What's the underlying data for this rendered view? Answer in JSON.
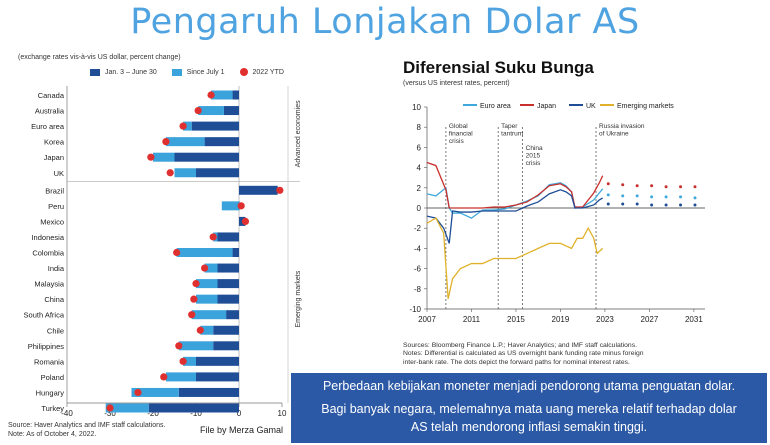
{
  "title": "Pengaruh Lonjakan Dolar AS",
  "left_chart": {
    "subtitle": "(exchange rates vis-à-vis US dollar, percent change)",
    "source": "Source: Haver Analytics and IMF staff calculations.",
    "note": "Note: As of October 4, 2022.",
    "credit": "File by Merza Gamal",
    "group_labels": [
      "Advanced economies",
      "Emerging markets"
    ],
    "colors": {
      "jan_june": "#1f4e96",
      "since_july": "#3ba3dc",
      "ytd": "#e02f2f"
    }
  },
  "right_chart": {
    "title": "Diferensial Suku Bunga",
    "subtitle": "(versus US interest rates, percent)",
    "annotations": [
      "Global financial crisis",
      "Taper tantrum",
      "China 2015 crisis",
      "Russia invasion of Ukraine"
    ],
    "source_lines": [
      "Sources: Bloomberg Finance L.P.; Haver Analytics; and IMF staff calculations.",
      "Notes: Differential is calculated as US overnight bank funding rate minus foreign",
      "inter-bank rate. The dots depict the forward paths for nominal interest rates."
    ],
    "colors": {
      "euro": "#3fa8dc",
      "japan": "#c9302c",
      "uk": "#1f4e96",
      "em": "#e0b22a"
    }
  },
  "banner": {
    "line1": "Perbedaan kebijakan moneter menjadi pendorong utama penguatan dolar.",
    "line2": "Bagi banyak negara, melemahnya mata uang mereka relatif terhadap dolar",
    "line3": "AS telah mendorong inflasi semakin tinggi."
  },
  "chart_data": [
    {
      "type": "bar",
      "orientation": "horizontal",
      "title": "",
      "xlim": [
        -40,
        10
      ],
      "xticks": [
        -40,
        -30,
        -20,
        -10,
        0,
        10
      ],
      "series_names": [
        "Jan. 3 – June 30",
        "Since July 1",
        "2022 YTD"
      ],
      "categories": [
        "Canada",
        "Australia",
        "Euro area",
        "Korea",
        "Japan",
        "UK",
        "Brazil",
        "Peru",
        "Mexico",
        "Indonesia",
        "Colombia",
        "India",
        "Malaysia",
        "China",
        "South Africa",
        "Chile",
        "Philippines",
        "Romania",
        "Poland",
        "Hungary",
        "Turkey"
      ],
      "jan_june": [
        -1.5,
        -3.5,
        -11,
        -8,
        -15,
        -10,
        9,
        0,
        1.5,
        -5,
        -1.5,
        -5,
        -5,
        -5,
        -3,
        -6,
        -6,
        -10,
        -10,
        -14,
        -21
      ],
      "since_july": [
        -5,
        -6,
        -2,
        -9,
        -5,
        -5,
        0,
        -4,
        0,
        -1,
        -13,
        -3,
        -5,
        -5,
        -8,
        -3,
        -8,
        -3,
        -7,
        -11,
        -10
      ],
      "ytd": [
        -6.5,
        -9.5,
        -13,
        -17,
        -20.5,
        -16,
        9.5,
        0.5,
        1.5,
        -6,
        -14.5,
        -8,
        -10,
        -10.5,
        -11,
        -9,
        -14,
        -13,
        -17.5,
        -23.5,
        -30
      ]
    },
    {
      "type": "line",
      "title": "Diferensial Suku Bunga",
      "xlim": [
        2007,
        2032
      ],
      "ylim": [
        -10,
        10
      ],
      "xticks": [
        2007,
        2011,
        2015,
        2019,
        2023,
        2027,
        2031
      ],
      "yticks": [
        10,
        8,
        6,
        4,
        2,
        0,
        -2,
        -4,
        -6,
        -8,
        -10
      ],
      "event_lines": [
        2008.7,
        2013.4,
        2015.6,
        2022.2
      ],
      "series": [
        {
          "name": "Euro area",
          "x": [
            2007,
            2007.8,
            2008.7,
            2009,
            2009.3,
            2010,
            2011,
            2012,
            2013,
            2014,
            2015,
            2016,
            2017,
            2018,
            2019,
            2019.5,
            2020,
            2020.3,
            2021,
            2022,
            2022.5,
            2022.8
          ],
          "y": [
            1.4,
            1.2,
            2.0,
            0.0,
            -0.5,
            -0.5,
            -1.0,
            -0.2,
            -0.2,
            -0.1,
            0.3,
            0.7,
            1.2,
            2.3,
            2.5,
            2.2,
            1.6,
            0.0,
            0.1,
            0.8,
            1.5,
            1.9
          ],
          "forward_y": [
            1.3,
            1.2,
            1.2,
            1.1,
            1.1,
            1.1,
            1.0
          ]
        },
        {
          "name": "Japan",
          "x": [
            2007,
            2007.8,
            2008.7,
            2009,
            2009.3,
            2010,
            2011,
            2012,
            2013,
            2014,
            2015,
            2016,
            2017,
            2018,
            2019,
            2019.5,
            2020,
            2020.3,
            2021,
            2022,
            2022.5,
            2022.8
          ],
          "y": [
            4.5,
            4.2,
            1.8,
            0.0,
            0.0,
            0.0,
            0.0,
            0.0,
            0.1,
            0.1,
            0.3,
            0.6,
            1.3,
            2.2,
            2.4,
            2.1,
            1.6,
            0.1,
            0.1,
            1.5,
            2.5,
            3.2
          ],
          "forward_y": [
            2.4,
            2.3,
            2.2,
            2.2,
            2.1,
            2.1,
            2.1
          ]
        },
        {
          "name": "UK",
          "x": [
            2007,
            2007.8,
            2008.5,
            2009,
            2009.3,
            2010,
            2011,
            2012,
            2013,
            2014,
            2015,
            2016,
            2017,
            2018,
            2019,
            2019.5,
            2020,
            2020.3,
            2021,
            2022,
            2022.5,
            2022.8
          ],
          "y": [
            -0.8,
            -1.0,
            -2.0,
            -3.5,
            -0.3,
            -0.4,
            -0.4,
            -0.3,
            -0.3,
            -0.3,
            -0.3,
            0.2,
            0.6,
            1.4,
            1.8,
            1.6,
            1.2,
            0.0,
            0.0,
            0.3,
            0.8,
            1.0
          ],
          "forward_y": [
            0.4,
            0.4,
            0.4,
            0.3,
            0.3,
            0.3,
            0.3
          ]
        },
        {
          "name": "Emerging markets",
          "x": [
            2007,
            2007.8,
            2008.5,
            2008.9,
            2009.3,
            2010,
            2011,
            2012,
            2013,
            2014,
            2015,
            2016,
            2017,
            2018,
            2019,
            2020,
            2020.5,
            2021,
            2021.5,
            2022,
            2022.3,
            2022.8
          ],
          "y": [
            -1.5,
            -1.0,
            -2.5,
            -9.0,
            -7.0,
            -6.0,
            -5.5,
            -5.5,
            -5.0,
            -5.0,
            -5.0,
            -4.5,
            -4.0,
            -3.5,
            -3.5,
            -4.0,
            -3.0,
            -3.0,
            -2.0,
            -3.0,
            -4.5,
            -4.0
          ]
        }
      ]
    }
  ]
}
